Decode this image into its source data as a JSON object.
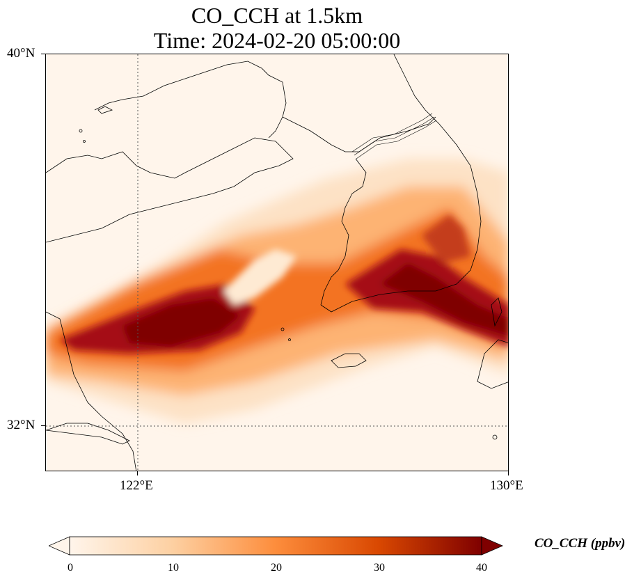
{
  "title_line1": "CO_CCH at 1.5km",
  "title_line2": "Time: 2024-02-20 05:00:00",
  "axes": {
    "lat_ticks": [
      "40°N",
      "32°N"
    ],
    "lon_ticks": [
      "122°E",
      "130°E"
    ]
  },
  "colorbar": {
    "title": "CO_CCH (ppbv)",
    "ticks": [
      "0",
      "10",
      "20",
      "30",
      "40"
    ],
    "range": [
      0,
      40
    ],
    "colormap": [
      "#fff5eb",
      "#fdd0a2",
      "#fd8d3c",
      "#d94801",
      "#7f0000"
    ]
  },
  "chart_data": {
    "type": "heatmap",
    "variable": "CO_CCH",
    "level": "1.5km",
    "units": "ppbv",
    "lon_range": [
      120.4,
      130.0
    ],
    "lat_range": [
      31.0,
      40.0
    ],
    "gridlines": {
      "lon": [
        122
      ],
      "lat": [
        32
      ]
    },
    "max_region": "120.5-124.5°E, 32.8-34.0°N and 127-130°E, 33.8-35.0°N"
  }
}
